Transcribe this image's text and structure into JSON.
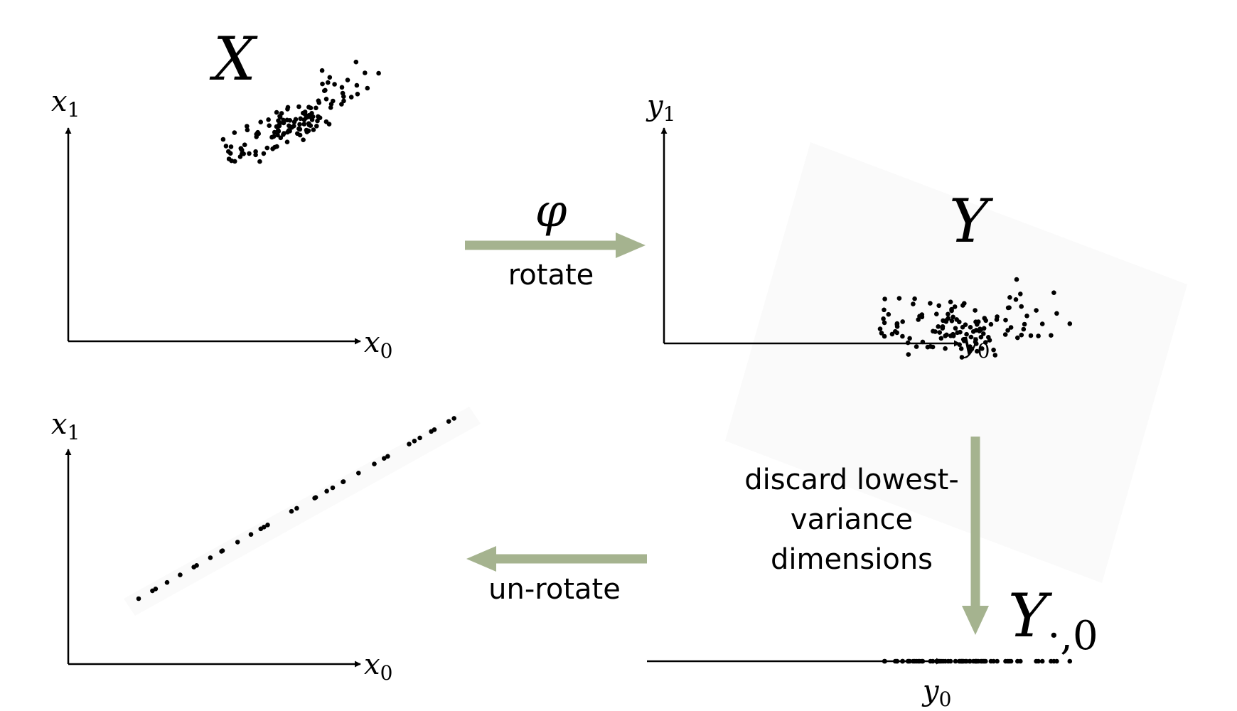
{
  "panels": {
    "original": {
      "set_symbol": "X",
      "x_axis": {
        "base": "x",
        "sub": "0"
      },
      "y_axis": {
        "base": "x",
        "sub": "1"
      }
    },
    "rotated": {
      "set_symbol": "Y",
      "x_axis": {
        "base": "y",
        "sub": "0"
      },
      "y_axis": {
        "base": "y",
        "sub": "1"
      }
    },
    "reduced": {
      "set_symbol": "Y",
      "set_subscript": "·,0",
      "x_axis": {
        "base": "y",
        "sub": "0"
      }
    },
    "reconstructed": {
      "x_axis": {
        "base": "x",
        "sub": "0"
      },
      "y_axis": {
        "base": "x",
        "sub": "1"
      }
    }
  },
  "steps": {
    "rotate": {
      "symbol": "φ",
      "label": "rotate"
    },
    "discard": {
      "lines": [
        "discard lowest-",
        "variance",
        "dimensions"
      ]
    },
    "unrotate": {
      "label": "un-rotate"
    }
  },
  "colors": {
    "arrow": "#a5b38f",
    "axis": "#000000",
    "point": "#000000"
  }
}
